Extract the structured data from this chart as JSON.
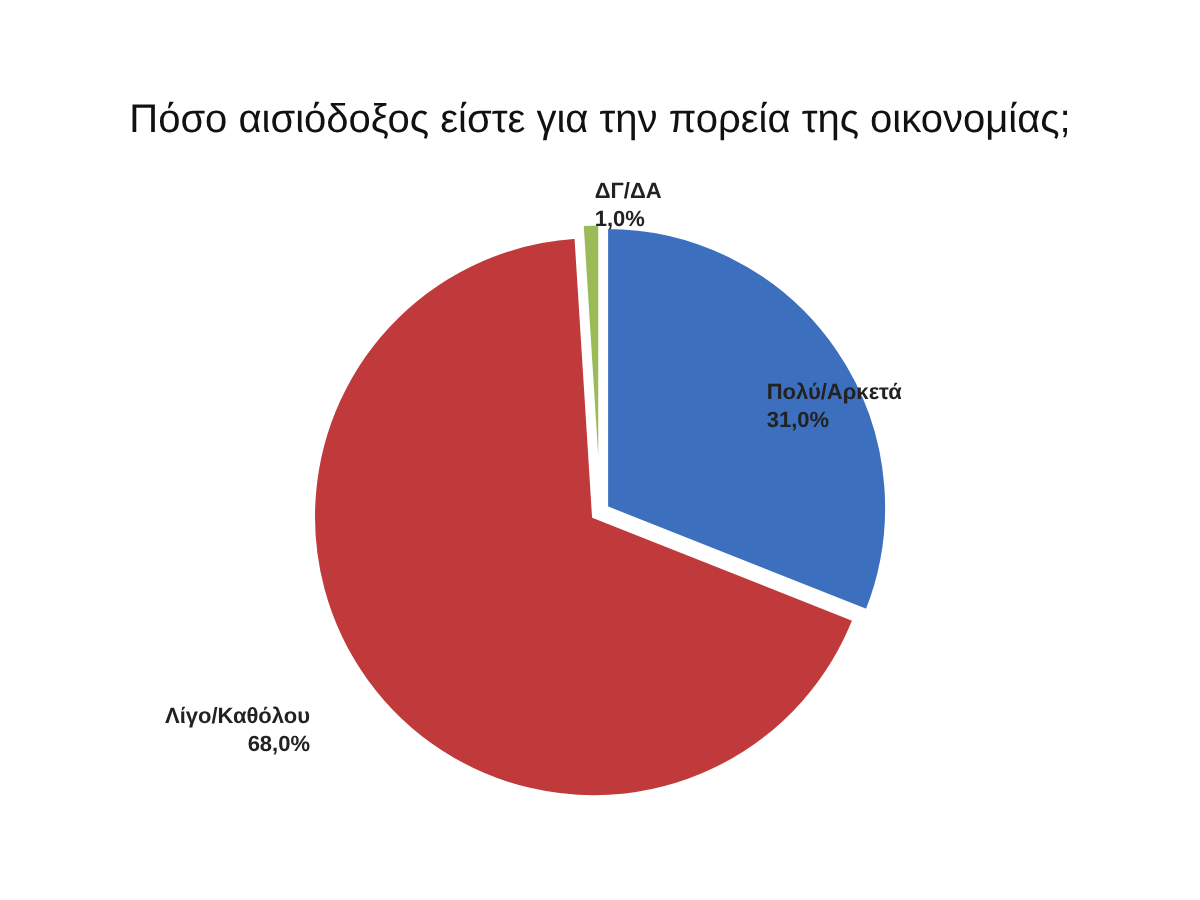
{
  "chart_data": {
    "type": "pie",
    "title": "Πόσο αισιόδοξος είστε για την πορεία της οικονομίας;",
    "categories": [
      "Πολύ/Αρκετά",
      "Λίγο/Καθόλου",
      "ΔΓ/ΔΑ"
    ],
    "values": [
      31.0,
      68.0,
      1.0
    ],
    "colors": [
      "#3c6fbe",
      "#c0393b",
      "#9bbb59"
    ],
    "value_labels": [
      "31,0%",
      "68,0%",
      "1,0%"
    ]
  }
}
